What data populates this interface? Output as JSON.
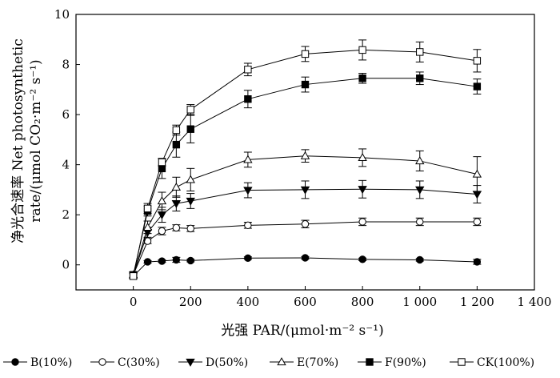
{
  "chart_data": {
    "type": "line",
    "xlabel": "光强 PAR/(μmol·m⁻² s⁻¹)",
    "ylabel_line1": "净光合速率 Net photosynthetic",
    "ylabel_line2": "rate/(μmol CO₂·m⁻² s⁻¹)",
    "xlim": [
      -200,
      1400
    ],
    "ylim": [
      -1,
      10
    ],
    "x_ticks": [
      0,
      200,
      400,
      600,
      800,
      1000,
      1200,
      1400
    ],
    "x_tick_labels": [
      "0",
      "200",
      "400",
      "600",
      "800",
      "1 000",
      "1 200",
      "1 400"
    ],
    "y_ticks": [
      0,
      2,
      4,
      6,
      8,
      10
    ],
    "y_tick_labels": [
      "0",
      "2",
      "4",
      "6",
      "8",
      "10"
    ],
    "grid": false,
    "legend_position": "bottom",
    "x": [
      0,
      50,
      100,
      150,
      200,
      400,
      600,
      800,
      1000,
      1200
    ],
    "series": [
      {
        "name": "B(10%)",
        "marker": "circle-filled",
        "values": [
          -0.45,
          0.12,
          0.15,
          0.2,
          0.17,
          0.27,
          0.28,
          0.22,
          0.2,
          0.12
        ],
        "errors": [
          0.1,
          0.05,
          0.05,
          0.1,
          0.05,
          0.05,
          0.05,
          0.05,
          0.05,
          0.1
        ]
      },
      {
        "name": "C(30%)",
        "marker": "circle-open",
        "values": [
          -0.4,
          0.95,
          1.35,
          1.48,
          1.45,
          1.58,
          1.63,
          1.72,
          1.72,
          1.72
        ],
        "errors": [
          0.1,
          0.1,
          0.15,
          0.12,
          0.12,
          0.12,
          0.15,
          0.15,
          0.15,
          0.15
        ]
      },
      {
        "name": "D(50%)",
        "marker": "triangle-down-filled",
        "values": [
          -0.4,
          1.3,
          2.0,
          2.45,
          2.55,
          2.98,
          3.0,
          3.02,
          3.0,
          2.82
        ],
        "errors": [
          0.1,
          0.2,
          0.3,
          0.3,
          0.3,
          0.3,
          0.35,
          0.35,
          0.35,
          0.35
        ]
      },
      {
        "name": "E(70%)",
        "marker": "triangle-up-open",
        "values": [
          -0.4,
          1.5,
          2.55,
          3.1,
          3.4,
          4.2,
          4.35,
          4.28,
          4.15,
          3.62
        ],
        "errors": [
          0.1,
          0.25,
          0.35,
          0.4,
          0.45,
          0.3,
          0.25,
          0.35,
          0.4,
          0.7
        ]
      },
      {
        "name": "F(90%)",
        "marker": "square-filled",
        "values": [
          -0.4,
          2.15,
          3.85,
          4.8,
          5.42,
          6.62,
          7.2,
          7.45,
          7.45,
          7.12
        ],
        "errors": [
          0.1,
          0.2,
          0.4,
          0.5,
          0.55,
          0.35,
          0.3,
          0.2,
          0.25,
          0.3
        ]
      },
      {
        "name": "CK(100%)",
        "marker": "square-open",
        "values": [
          -0.45,
          2.25,
          4.1,
          5.38,
          6.2,
          7.8,
          8.42,
          8.58,
          8.5,
          8.15
        ],
        "errors": [
          0.1,
          0.2,
          0.15,
          0.2,
          0.2,
          0.25,
          0.3,
          0.4,
          0.4,
          0.45
        ]
      }
    ]
  }
}
